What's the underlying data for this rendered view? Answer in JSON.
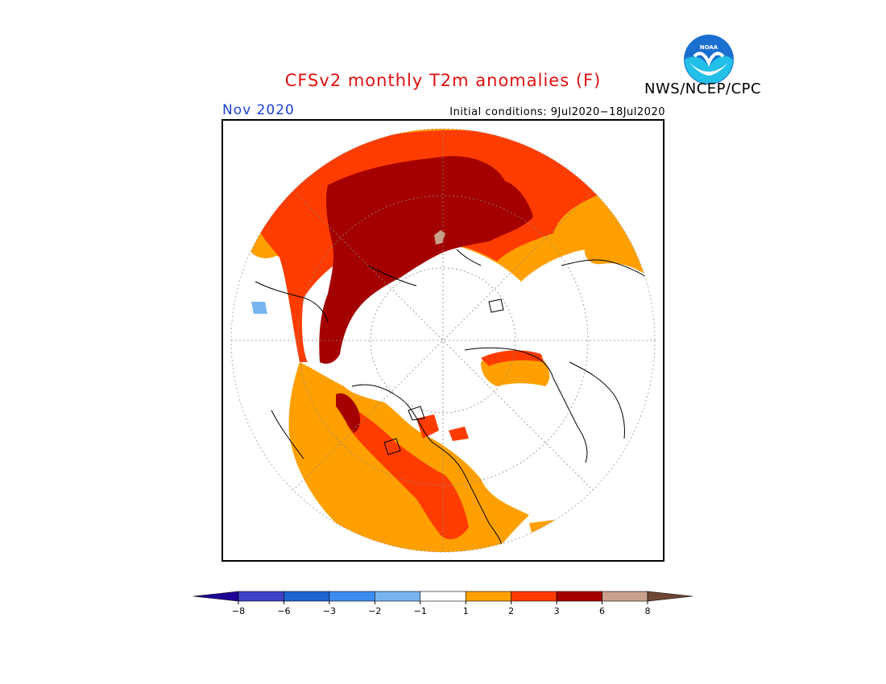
{
  "title": "CFSv2 monthly T2m anomalies (F)",
  "month_label": "Nov 2020",
  "initial_conditions": "Initial conditions: 9Jul2020−18Jul2020",
  "agency": "NWS/NCEP/CPC",
  "logo_text": "NOAA",
  "colors": {
    "ocean_bg": "#ffffff",
    "anom_1_2": "#ffa000",
    "anom_2_3": "#ff3c00",
    "anom_3_6": "#a50000",
    "anom_6_8": "#c8a08c",
    "anom_gt_8": "#6e4632",
    "anom_m1_m2": "#78b4f0",
    "anom_m2_m3": "#3c8cf0",
    "anom_m3_m6": "#1e64d2",
    "anom_m6_m8": "#4040c8",
    "anom_lt_m8": "#1e0096"
  },
  "colorbar": {
    "boxes": [
      "#1e0096",
      "#4040c8",
      "#1e64d2",
      "#3c8cf0",
      "#78b4f0",
      "#ffffff",
      "#ffa000",
      "#ff3c00",
      "#a50000",
      "#c8a08c",
      "#6e4632"
    ],
    "ticks": [
      "−8",
      "−6",
      "−3",
      "−2",
      "−1",
      "1",
      "2",
      "3",
      "6",
      "8"
    ]
  }
}
